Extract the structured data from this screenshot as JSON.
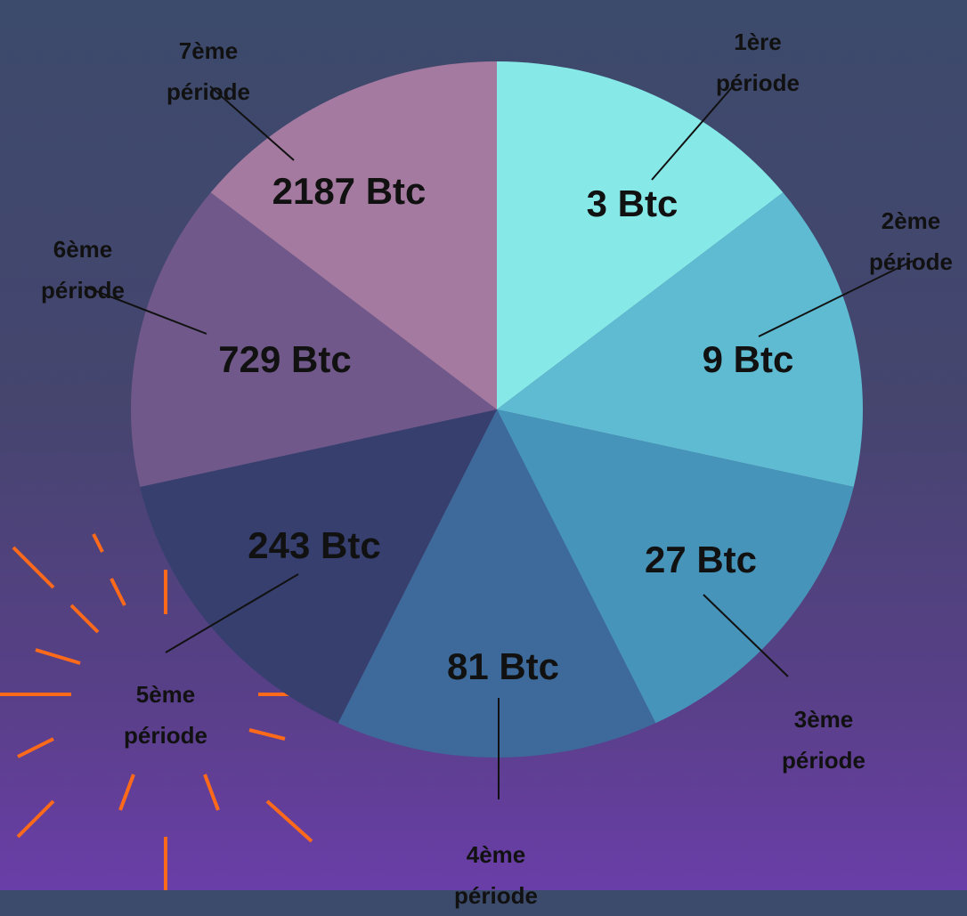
{
  "segments": [
    {
      "period": "1ère période",
      "amount": "3 Btc"
    },
    {
      "period": "2ème période",
      "amount": "9 Btc"
    },
    {
      "period": "3ème période",
      "amount": "27 Btc"
    },
    {
      "period": "4ème période",
      "amount": "81 Btc"
    },
    {
      "period": "5ème période",
      "amount": "243 Btc"
    },
    {
      "period": "6ème période",
      "amount": "729 Btc"
    },
    {
      "period": "7ème période",
      "amount": "2187 Btc"
    }
  ]
}
